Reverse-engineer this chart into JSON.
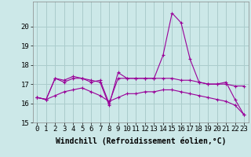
{
  "xlabel": "Windchill (Refroidissement éolien,°C)",
  "bg_color": "#cce8e8",
  "grid_color": "#aacccc",
  "line_color": "#990099",
  "x": [
    0,
    1,
    2,
    3,
    4,
    5,
    6,
    7,
    8,
    9,
    10,
    11,
    12,
    13,
    14,
    15,
    16,
    17,
    18,
    19,
    20,
    21,
    22,
    23
  ],
  "line1": [
    16.3,
    16.2,
    17.3,
    17.2,
    17.4,
    17.3,
    17.2,
    17.1,
    15.9,
    17.6,
    17.3,
    17.3,
    17.3,
    17.3,
    18.5,
    20.7,
    20.2,
    18.3,
    17.1,
    17.0,
    17.0,
    17.1,
    16.2,
    15.4
  ],
  "line2": [
    16.3,
    16.2,
    17.3,
    17.1,
    17.3,
    17.3,
    17.1,
    17.2,
    16.0,
    17.3,
    17.3,
    17.3,
    17.3,
    17.3,
    17.3,
    17.3,
    17.2,
    17.2,
    17.1,
    17.0,
    17.0,
    17.0,
    16.9,
    16.9
  ],
  "line3": [
    16.3,
    16.2,
    16.4,
    16.6,
    16.7,
    16.8,
    16.6,
    16.4,
    16.1,
    16.3,
    16.5,
    16.5,
    16.6,
    16.6,
    16.7,
    16.7,
    16.6,
    16.5,
    16.4,
    16.3,
    16.2,
    16.1,
    15.9,
    15.4
  ],
  "ylim": [
    15,
    21
  ],
  "yticks": [
    15,
    16,
    17,
    18,
    19,
    20
  ],
  "xticks": [
    0,
    1,
    2,
    3,
    4,
    5,
    6,
    7,
    8,
    9,
    10,
    11,
    12,
    13,
    14,
    15,
    16,
    17,
    18,
    19,
    20,
    21,
    22,
    23
  ],
  "tick_fontsize": 6.5,
  "xlabel_fontsize": 7
}
